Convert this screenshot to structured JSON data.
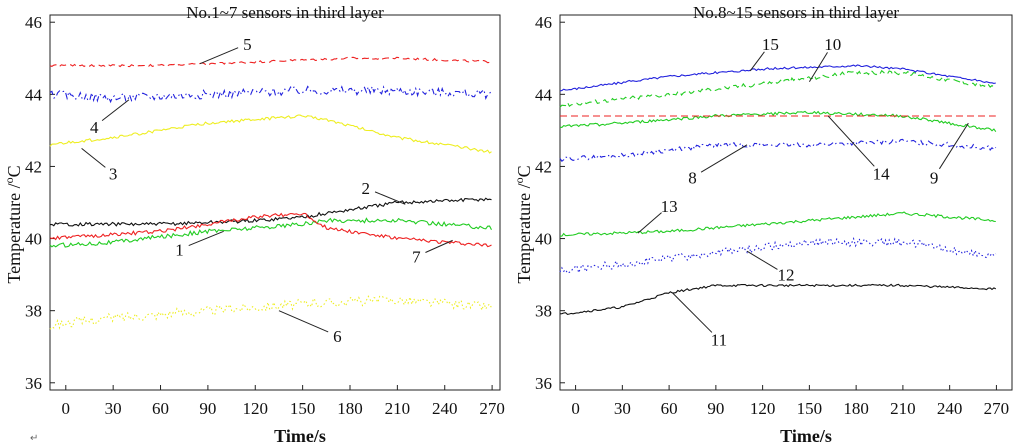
{
  "return_mark": "↵",
  "chart_data": [
    {
      "type": "line",
      "title": "No.1~7 sensors in third layer",
      "xlabel": "Time/s",
      "ylabel": "Temperature /",
      "ylabel_sup": "o",
      "ylabel_unit": "C",
      "xlim": [
        -10,
        275
      ],
      "ylim": [
        35.8,
        46.2
      ],
      "xticks": [
        0,
        30,
        60,
        90,
        120,
        150,
        180,
        210,
        240,
        270
      ],
      "yticks": [
        36,
        38,
        40,
        42,
        44,
        46
      ],
      "series": [
        {
          "name": "1",
          "color": "#22cc22",
          "style": "solid",
          "noise": 0.06,
          "x": [
            -10,
            30,
            90,
            150,
            165,
            210,
            270
          ],
          "y": [
            39.8,
            39.9,
            40.2,
            40.4,
            40.5,
            40.5,
            40.3
          ]
        },
        {
          "name": "2",
          "color": "#111111",
          "style": "solid",
          "noise": 0.05,
          "x": [
            -10,
            60,
            120,
            150,
            165,
            210,
            270
          ],
          "y": [
            40.4,
            40.4,
            40.5,
            40.6,
            40.7,
            41.0,
            41.1
          ]
        },
        {
          "name": "3",
          "color": "#eeee22",
          "style": "solid",
          "noise": 0.04,
          "x": [
            -10,
            30,
            90,
            150,
            165,
            210,
            270
          ],
          "y": [
            42.6,
            42.8,
            43.2,
            43.4,
            43.3,
            42.8,
            42.4
          ]
        },
        {
          "name": "4",
          "color": "#2222dd",
          "style": "dashdot",
          "noise": 0.12,
          "x": [
            -10,
            30,
            90,
            150,
            210,
            270
          ],
          "y": [
            44.0,
            43.9,
            44.0,
            44.1,
            44.1,
            44.0
          ]
        },
        {
          "name": "5",
          "color": "#ee2222",
          "style": "dashed",
          "noise": 0.03,
          "x": [
            -10,
            60,
            120,
            180,
            210,
            270
          ],
          "y": [
            44.8,
            44.8,
            44.9,
            45.0,
            45.0,
            44.9
          ]
        },
        {
          "name": "6",
          "color": "#eeee22",
          "style": "dotted",
          "noise": 0.13,
          "x": [
            -10,
            30,
            90,
            150,
            210,
            270
          ],
          "y": [
            37.6,
            37.8,
            38.0,
            38.2,
            38.3,
            38.1
          ]
        },
        {
          "name": "7",
          "color": "#ee2222",
          "style": "solid",
          "noise": 0.05,
          "x": [
            -10,
            60,
            120,
            150,
            165,
            210,
            270
          ],
          "y": [
            40.0,
            40.2,
            40.6,
            40.7,
            40.3,
            40.0,
            39.8
          ]
        }
      ],
      "annotations": [
        {
          "label": "1",
          "x": 100,
          "y": 40.2,
          "tx": 72,
          "ty": 39.7
        },
        {
          "label": "2",
          "x": 215,
          "y": 40.95,
          "tx": 190,
          "ty": 41.4
        },
        {
          "label": "3",
          "x": 10,
          "y": 42.5,
          "tx": 30,
          "ty": 41.8
        },
        {
          "label": "4",
          "x": 40,
          "y": 43.85,
          "tx": 18,
          "ty": 43.1
        },
        {
          "label": "5",
          "x": 85,
          "y": 44.85,
          "tx": 115,
          "ty": 45.4
        },
        {
          "label": "6",
          "x": 135,
          "y": 38.0,
          "tx": 172,
          "ty": 37.3
        },
        {
          "label": "7",
          "x": 245,
          "y": 39.95,
          "tx": 222,
          "ty": 39.5
        }
      ]
    },
    {
      "type": "line",
      "title": "No.8~15 sensors in third layer",
      "xlabel": "Time/s",
      "ylabel": "Temperature /",
      "ylabel_sup": "o",
      "ylabel_unit": "C",
      "xlim": [
        -10,
        280
      ],
      "ylim": [
        35.8,
        46.2
      ],
      "xticks": [
        0,
        30,
        60,
        90,
        120,
        150,
        180,
        210,
        240,
        270
      ],
      "yticks": [
        36,
        38,
        40,
        42,
        44,
        46
      ],
      "series": [
        {
          "name": "8",
          "color": "#2222dd",
          "style": "dashdot",
          "noise": 0.06,
          "x": [
            -10,
            30,
            90,
            150,
            210,
            270
          ],
          "y": [
            42.2,
            42.3,
            42.6,
            42.6,
            42.7,
            42.5
          ]
        },
        {
          "name": "9",
          "color": "#22cc22",
          "style": "solid",
          "noise": 0.04,
          "x": [
            -10,
            30,
            90,
            150,
            210,
            240,
            270
          ],
          "y": [
            43.1,
            43.2,
            43.4,
            43.5,
            43.4,
            43.2,
            43.0
          ]
        },
        {
          "name": "10",
          "color": "#22cc22",
          "style": "dashed",
          "noise": 0.06,
          "x": [
            -10,
            60,
            120,
            180,
            210,
            270
          ],
          "y": [
            43.7,
            44.0,
            44.3,
            44.6,
            44.6,
            44.2
          ]
        },
        {
          "name": "11",
          "color": "#111111",
          "style": "solid",
          "noise": 0.03,
          "x": [
            -10,
            30,
            60,
            90,
            150,
            210,
            270
          ],
          "y": [
            37.9,
            38.1,
            38.5,
            38.7,
            38.7,
            38.7,
            38.6
          ]
        },
        {
          "name": "12",
          "color": "#2222dd",
          "style": "dotted",
          "noise": 0.11,
          "x": [
            -10,
            30,
            90,
            150,
            210,
            270
          ],
          "y": [
            39.1,
            39.3,
            39.6,
            39.9,
            39.9,
            39.5
          ]
        },
        {
          "name": "13",
          "color": "#22cc22",
          "style": "solid",
          "noise": 0.04,
          "x": [
            -10,
            60,
            120,
            180,
            210,
            270
          ],
          "y": [
            40.1,
            40.2,
            40.4,
            40.6,
            40.7,
            40.5
          ]
        },
        {
          "name": "14",
          "color": "#ee2222",
          "style": "dashed",
          "noise": 0.0,
          "x": [
            -10,
            270
          ],
          "y": [
            43.4,
            43.4
          ]
        },
        {
          "name": "15",
          "color": "#2222dd",
          "style": "solid",
          "noise": 0.03,
          "x": [
            -10,
            60,
            120,
            180,
            210,
            270
          ],
          "y": [
            44.1,
            44.5,
            44.7,
            44.8,
            44.7,
            44.3
          ]
        }
      ],
      "annotations": [
        {
          "label": "8",
          "x": 110,
          "y": 42.6,
          "tx": 75,
          "ty": 41.7
        },
        {
          "label": "9",
          "x": 252,
          "y": 43.2,
          "tx": 230,
          "ty": 41.7
        },
        {
          "label": "10",
          "x": 150,
          "y": 44.35,
          "tx": 165,
          "ty": 45.4
        },
        {
          "label": "11",
          "x": 62,
          "y": 38.5,
          "tx": 92,
          "ty": 37.2
        },
        {
          "label": "12",
          "x": 110,
          "y": 39.65,
          "tx": 135,
          "ty": 39.0
        },
        {
          "label": "13",
          "x": 40,
          "y": 40.15,
          "tx": 60,
          "ty": 40.9
        },
        {
          "label": "14",
          "x": 162,
          "y": 43.4,
          "tx": 196,
          "ty": 41.8
        },
        {
          "label": "15",
          "x": 112,
          "y": 44.65,
          "tx": 125,
          "ty": 45.4
        }
      ]
    }
  ]
}
